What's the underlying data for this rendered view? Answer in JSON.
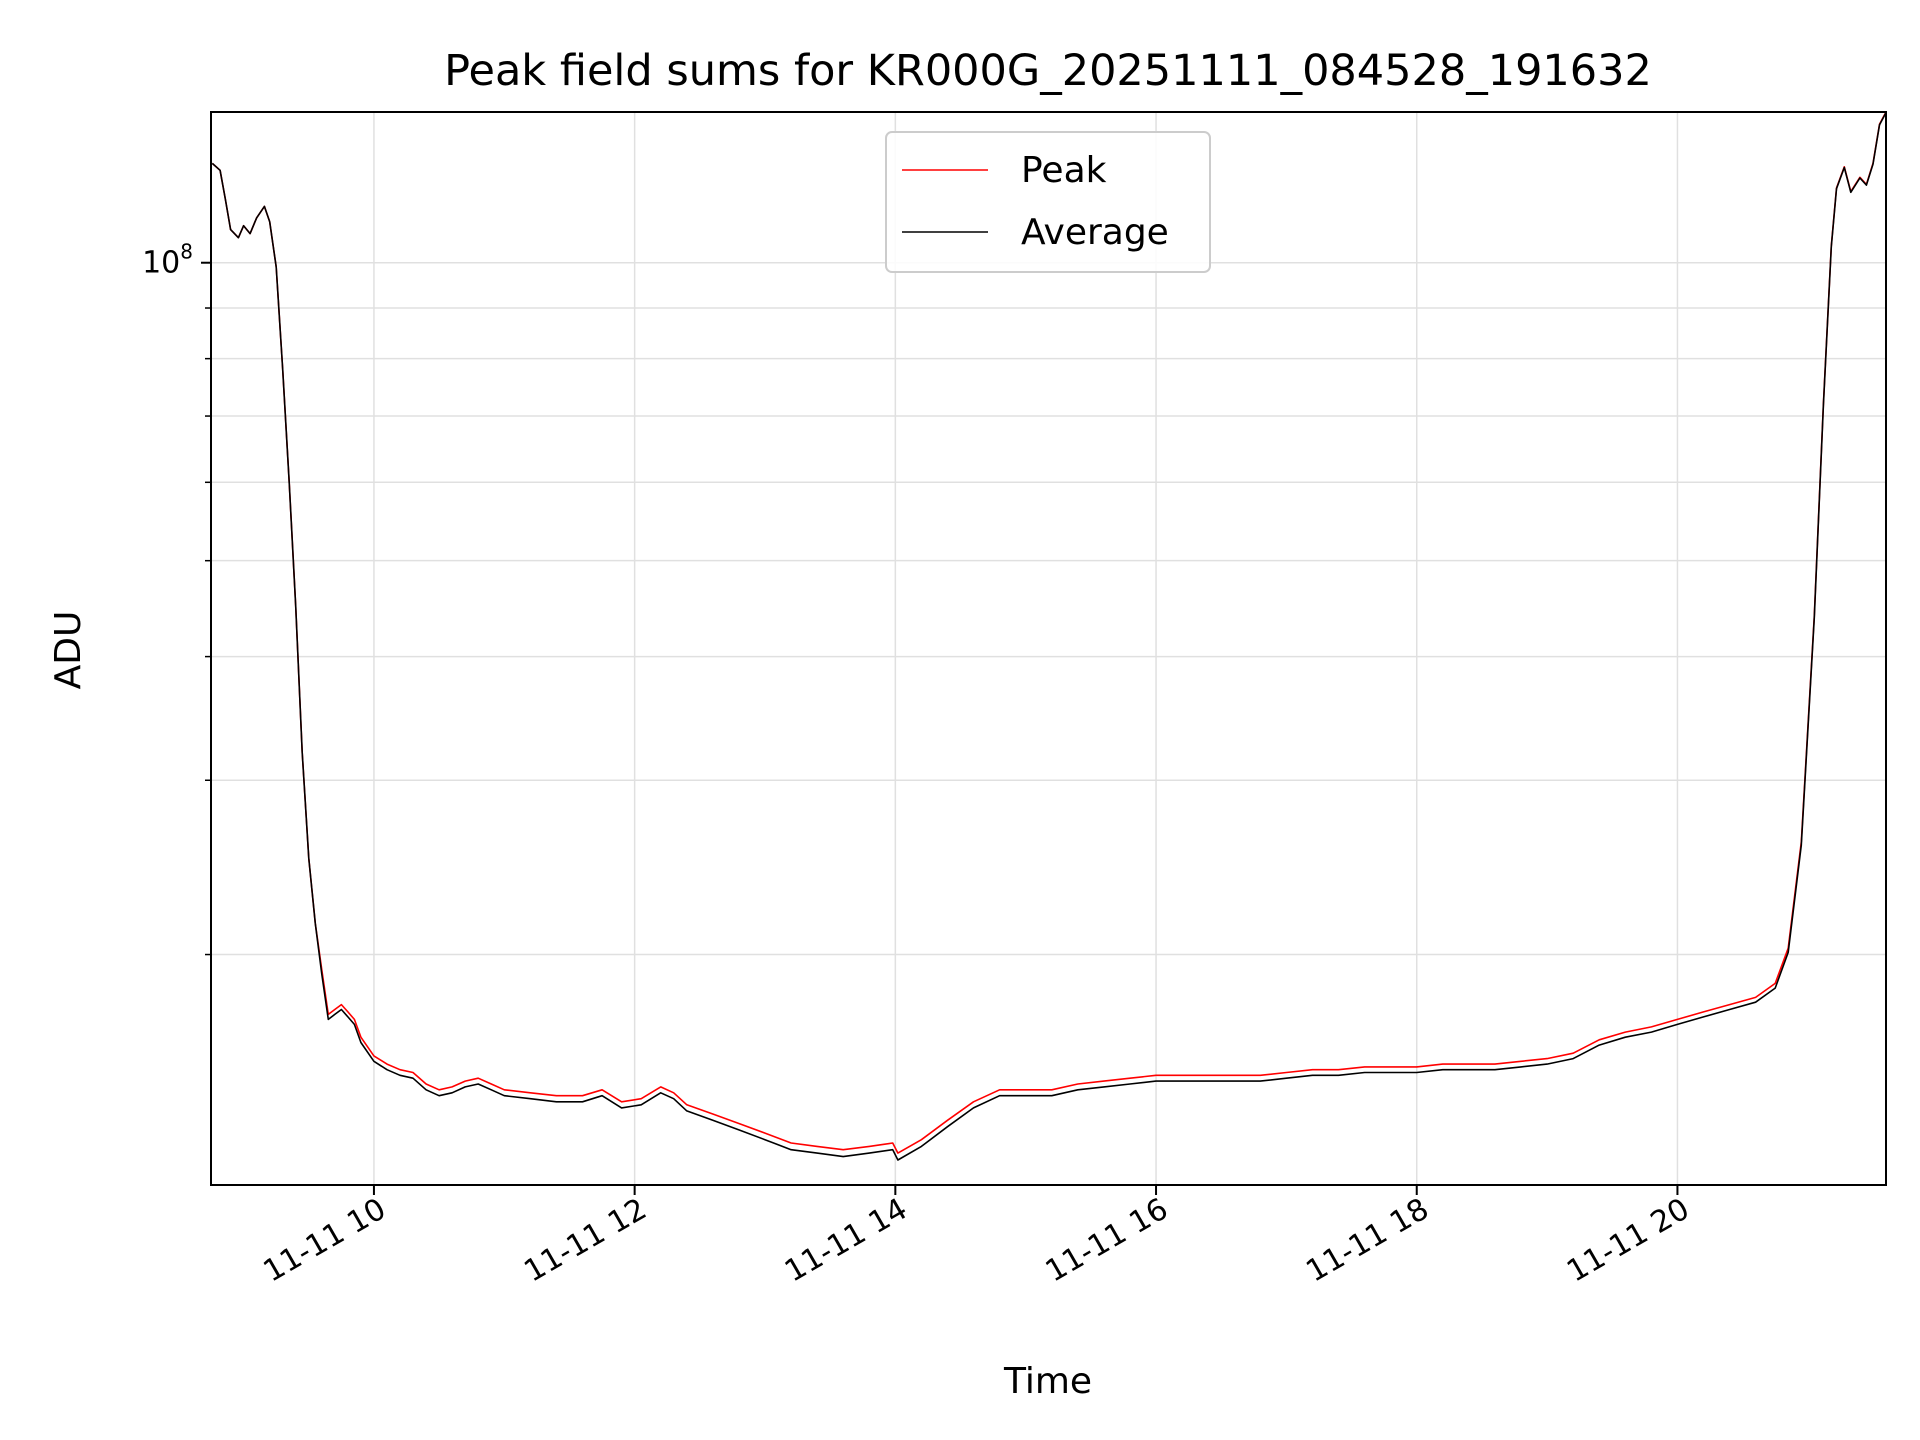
{
  "chart_data": {
    "type": "line",
    "title": "Peak field sums for KR000G_20251111_084528_191632",
    "xlabel": "Time",
    "ylabel": "ADU",
    "yscale": "log",
    "xlim": [
      8.75,
      21.6
    ],
    "ylim": [
      11700000,
      142000000
    ],
    "grid": true,
    "legend_position": "top-center",
    "x_ticks": [
      {
        "value": 10,
        "label": "11-11 10"
      },
      {
        "value": 12,
        "label": "11-11 12"
      },
      {
        "value": 14,
        "label": "11-11 14"
      },
      {
        "value": 16,
        "label": "11-11 16"
      },
      {
        "value": 18,
        "label": "11-11 18"
      },
      {
        "value": 20,
        "label": "11-11 20"
      }
    ],
    "y_major_ticks": [
      {
        "value": 100000000,
        "base": "10",
        "exponent": "8"
      }
    ],
    "y_minor_ticks": [
      20000000,
      30000000,
      40000000,
      50000000,
      60000000,
      70000000,
      80000000,
      90000000
    ],
    "series": [
      {
        "name": "Peak",
        "color": "#ff0000",
        "points": [
          [
            8.76,
            126000000
          ],
          [
            8.82,
            124000000
          ],
          [
            8.86,
            116000000
          ],
          [
            8.9,
            108000000
          ],
          [
            8.96,
            106000000
          ],
          [
            9.0,
            109000000
          ],
          [
            9.05,
            107000000
          ],
          [
            9.1,
            111000000
          ],
          [
            9.16,
            114000000
          ],
          [
            9.2,
            110000000
          ],
          [
            9.25,
            99000000
          ],
          [
            9.3,
            78000000
          ],
          [
            9.35,
            60000000
          ],
          [
            9.4,
            45000000
          ],
          [
            9.45,
            32000000
          ],
          [
            9.5,
            25000000
          ],
          [
            9.55,
            21500000
          ],
          [
            9.6,
            19300000
          ],
          [
            9.65,
            17400000
          ],
          [
            9.7,
            17600000
          ],
          [
            9.75,
            17800000
          ],
          [
            9.8,
            17500000
          ],
          [
            9.85,
            17200000
          ],
          [
            9.9,
            16500000
          ],
          [
            10.0,
            15800000
          ],
          [
            10.1,
            15500000
          ],
          [
            10.2,
            15300000
          ],
          [
            10.3,
            15200000
          ],
          [
            10.4,
            14800000
          ],
          [
            10.5,
            14600000
          ],
          [
            10.6,
            14700000
          ],
          [
            10.7,
            14900000
          ],
          [
            10.8,
            15000000
          ],
          [
            10.9,
            14800000
          ],
          [
            11.0,
            14600000
          ],
          [
            11.2,
            14500000
          ],
          [
            11.4,
            14400000
          ],
          [
            11.6,
            14400000
          ],
          [
            11.75,
            14600000
          ],
          [
            11.9,
            14200000
          ],
          [
            12.05,
            14300000
          ],
          [
            12.2,
            14700000
          ],
          [
            12.3,
            14500000
          ],
          [
            12.4,
            14100000
          ],
          [
            12.6,
            13800000
          ],
          [
            12.8,
            13500000
          ],
          [
            13.0,
            13200000
          ],
          [
            13.2,
            12900000
          ],
          [
            13.4,
            12800000
          ],
          [
            13.6,
            12700000
          ],
          [
            13.8,
            12800000
          ],
          [
            13.98,
            12900000
          ],
          [
            14.02,
            12600000
          ],
          [
            14.2,
            13000000
          ],
          [
            14.4,
            13600000
          ],
          [
            14.6,
            14200000
          ],
          [
            14.8,
            14600000
          ],
          [
            15.0,
            14600000
          ],
          [
            15.2,
            14600000
          ],
          [
            15.4,
            14800000
          ],
          [
            15.6,
            14900000
          ],
          [
            15.8,
            15000000
          ],
          [
            16.0,
            15100000
          ],
          [
            16.2,
            15100000
          ],
          [
            16.4,
            15100000
          ],
          [
            16.6,
            15100000
          ],
          [
            16.8,
            15100000
          ],
          [
            17.0,
            15200000
          ],
          [
            17.2,
            15300000
          ],
          [
            17.4,
            15300000
          ],
          [
            17.6,
            15400000
          ],
          [
            17.8,
            15400000
          ],
          [
            18.0,
            15400000
          ],
          [
            18.2,
            15500000
          ],
          [
            18.4,
            15500000
          ],
          [
            18.6,
            15500000
          ],
          [
            18.8,
            15600000
          ],
          [
            19.0,
            15700000
          ],
          [
            19.2,
            15900000
          ],
          [
            19.4,
            16400000
          ],
          [
            19.6,
            16700000
          ],
          [
            19.8,
            16900000
          ],
          [
            20.0,
            17200000
          ],
          [
            20.2,
            17500000
          ],
          [
            20.4,
            17800000
          ],
          [
            20.6,
            18100000
          ],
          [
            20.75,
            18700000
          ],
          [
            20.85,
            20300000
          ],
          [
            20.95,
            26000000
          ],
          [
            21.05,
            44000000
          ],
          [
            21.12,
            72000000
          ],
          [
            21.18,
            104000000
          ],
          [
            21.22,
            119000000
          ],
          [
            21.28,
            125000000
          ],
          [
            21.33,
            118000000
          ],
          [
            21.4,
            122000000
          ],
          [
            21.45,
            120000000
          ],
          [
            21.5,
            126000000
          ],
          [
            21.55,
            138000000
          ],
          [
            21.6,
            142000000
          ]
        ]
      },
      {
        "name": "Average",
        "color": "#000000",
        "points": [
          [
            8.76,
            126000000
          ],
          [
            8.82,
            124000000
          ],
          [
            8.86,
            116000000
          ],
          [
            8.9,
            108000000
          ],
          [
            8.96,
            106000000
          ],
          [
            9.0,
            109000000
          ],
          [
            9.05,
            107000000
          ],
          [
            9.1,
            111000000
          ],
          [
            9.16,
            114000000
          ],
          [
            9.2,
            110000000
          ],
          [
            9.25,
            99000000
          ],
          [
            9.3,
            78000000
          ],
          [
            9.35,
            60000000
          ],
          [
            9.4,
            45000000
          ],
          [
            9.45,
            32000000
          ],
          [
            9.5,
            25000000
          ],
          [
            9.55,
            21500000
          ],
          [
            9.6,
            19100000
          ],
          [
            9.65,
            17200000
          ],
          [
            9.7,
            17400000
          ],
          [
            9.75,
            17600000
          ],
          [
            9.8,
            17300000
          ],
          [
            9.85,
            17000000
          ],
          [
            9.9,
            16300000
          ],
          [
            10.0,
            15600000
          ],
          [
            10.1,
            15300000
          ],
          [
            10.2,
            15100000
          ],
          [
            10.3,
            15000000
          ],
          [
            10.4,
            14600000
          ],
          [
            10.5,
            14400000
          ],
          [
            10.6,
            14500000
          ],
          [
            10.7,
            14700000
          ],
          [
            10.8,
            14800000
          ],
          [
            10.9,
            14600000
          ],
          [
            11.0,
            14400000
          ],
          [
            11.2,
            14300000
          ],
          [
            11.4,
            14200000
          ],
          [
            11.6,
            14200000
          ],
          [
            11.75,
            14400000
          ],
          [
            11.9,
            14000000
          ],
          [
            12.05,
            14100000
          ],
          [
            12.2,
            14500000
          ],
          [
            12.3,
            14300000
          ],
          [
            12.4,
            13900000
          ],
          [
            12.6,
            13600000
          ],
          [
            12.8,
            13300000
          ],
          [
            13.0,
            13000000
          ],
          [
            13.2,
            12700000
          ],
          [
            13.4,
            12600000
          ],
          [
            13.6,
            12500000
          ],
          [
            13.8,
            12600000
          ],
          [
            13.98,
            12700000
          ],
          [
            14.02,
            12400000
          ],
          [
            14.2,
            12800000
          ],
          [
            14.4,
            13400000
          ],
          [
            14.6,
            14000000
          ],
          [
            14.8,
            14400000
          ],
          [
            15.0,
            14400000
          ],
          [
            15.2,
            14400000
          ],
          [
            15.4,
            14600000
          ],
          [
            15.6,
            14700000
          ],
          [
            15.8,
            14800000
          ],
          [
            16.0,
            14900000
          ],
          [
            16.2,
            14900000
          ],
          [
            16.4,
            14900000
          ],
          [
            16.6,
            14900000
          ],
          [
            16.8,
            14900000
          ],
          [
            17.0,
            15000000
          ],
          [
            17.2,
            15100000
          ],
          [
            17.4,
            15100000
          ],
          [
            17.6,
            15200000
          ],
          [
            17.8,
            15200000
          ],
          [
            18.0,
            15200000
          ],
          [
            18.2,
            15300000
          ],
          [
            18.4,
            15300000
          ],
          [
            18.6,
            15300000
          ],
          [
            18.8,
            15400000
          ],
          [
            19.0,
            15500000
          ],
          [
            19.2,
            15700000
          ],
          [
            19.4,
            16200000
          ],
          [
            19.6,
            16500000
          ],
          [
            19.8,
            16700000
          ],
          [
            20.0,
            17000000
          ],
          [
            20.2,
            17300000
          ],
          [
            20.4,
            17600000
          ],
          [
            20.6,
            17900000
          ],
          [
            20.75,
            18500000
          ],
          [
            20.85,
            20100000
          ],
          [
            20.95,
            25800000
          ],
          [
            21.05,
            43800000
          ],
          [
            21.12,
            71800000
          ],
          [
            21.18,
            103800000
          ],
          [
            21.22,
            118800000
          ],
          [
            21.28,
            124800000
          ],
          [
            21.33,
            117800000
          ],
          [
            21.4,
            121800000
          ],
          [
            21.45,
            119800000
          ],
          [
            21.5,
            125800000
          ],
          [
            21.55,
            137800000
          ],
          [
            21.6,
            141800000
          ]
        ]
      }
    ]
  }
}
